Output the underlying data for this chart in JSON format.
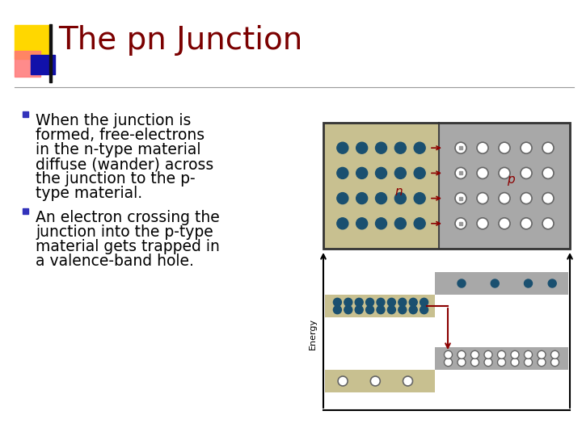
{
  "title": "The pn Junction",
  "title_color": "#7B0000",
  "title_fontsize": 28,
  "bg_color": "#FFFFFF",
  "bullet1_lines": [
    "When the junction is",
    "formed, free-electrons",
    "in the n-type material",
    "diffuse (wander) across",
    "the junction to the p-",
    "type material."
  ],
  "bullet2_lines": [
    "An electron crossing the",
    "junction into the p-type",
    "material gets trapped in",
    "a valence-band hole."
  ],
  "bullet_color": "#000000",
  "bullet_fontsize": 13.5,
  "bullet_sq_color": "#3333BB",
  "header_accent_yellow": "#FFD700",
  "header_accent_red": "#FF6666",
  "header_accent_blue": "#1111AA",
  "separator_color": "#999999",
  "n_color": "#C8C090",
  "p_color": "#A8A8A8",
  "electron_color": "#1A5070",
  "hole_outline": "#666666",
  "arrow_color": "#8B0000",
  "energy_label_color": "#000000",
  "energy_label_fontsize": 8,
  "np_label_fontsize": 11,
  "np_label_color": "#8B0000"
}
